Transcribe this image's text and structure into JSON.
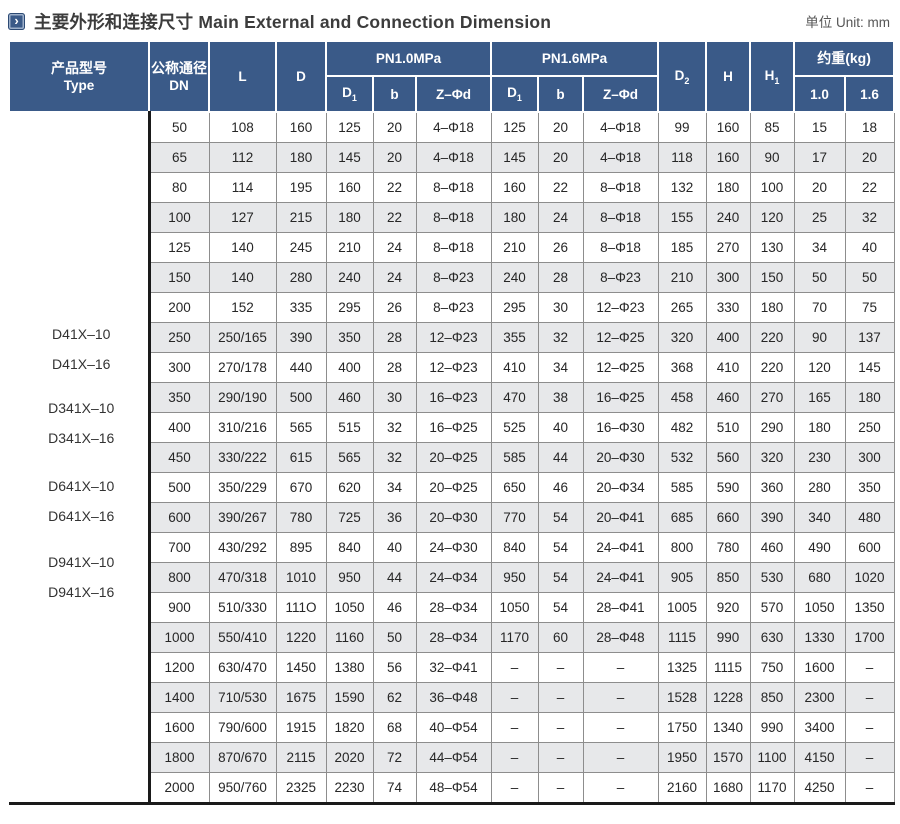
{
  "page": {
    "title_zh": "主要外形和连接尺寸",
    "title_en": "Main External and Connection Dimension",
    "unit_label": "单位 Unit: mm",
    "title_icon": "chevron-right-icon"
  },
  "colors": {
    "header_bg": "#3a5a88",
    "row_alt_bg": "#e7e8ea",
    "heavy_border": "#1a1a1a",
    "cell_border": "#8d8d8d",
    "body_text": "#262626"
  },
  "table": {
    "header": {
      "type": {
        "zh": "产品型号",
        "en": "Type"
      },
      "dn": {
        "zh": "公称通径",
        "en": "DN"
      },
      "l": "L",
      "d": "D",
      "pn10": "PN1.0MPa",
      "pn16": "PN1.6MPa",
      "d1": {
        "base": "D",
        "sub": "1"
      },
      "b": "b",
      "zd": "Z–Φd",
      "d2": {
        "base": "D",
        "sub": "2"
      },
      "h": "H",
      "h1": {
        "base": "H",
        "sub": "1"
      },
      "weight": "约重(kg)",
      "w10": "1.0",
      "w16": "1.6"
    },
    "type_labels": [
      "D41X–10",
      "D41X–16",
      "D341X–10",
      "D341X–16",
      "D641X–10",
      "D641X–16",
      "D941X–10",
      "D941X–16"
    ],
    "rows": [
      [
        "50",
        "108",
        "160",
        "125",
        "20",
        "4–Φ18",
        "125",
        "20",
        "4–Φ18",
        "99",
        "160",
        "85",
        "15",
        "18"
      ],
      [
        "65",
        "112",
        "180",
        "145",
        "20",
        "4–Φ18",
        "145",
        "20",
        "4–Φ18",
        "118",
        "160",
        "90",
        "17",
        "20"
      ],
      [
        "80",
        "114",
        "195",
        "160",
        "22",
        "8–Φ18",
        "160",
        "22",
        "8–Φ18",
        "132",
        "180",
        "100",
        "20",
        "22"
      ],
      [
        "100",
        "127",
        "215",
        "180",
        "22",
        "8–Φ18",
        "180",
        "24",
        "8–Φ18",
        "155",
        "240",
        "120",
        "25",
        "32"
      ],
      [
        "125",
        "140",
        "245",
        "210",
        "24",
        "8–Φ18",
        "210",
        "26",
        "8–Φ18",
        "185",
        "270",
        "130",
        "34",
        "40"
      ],
      [
        "150",
        "140",
        "280",
        "240",
        "24",
        "8–Φ23",
        "240",
        "28",
        "8–Φ23",
        "210",
        "300",
        "150",
        "50",
        "50"
      ],
      [
        "200",
        "152",
        "335",
        "295",
        "26",
        "8–Φ23",
        "295",
        "30",
        "12–Φ23",
        "265",
        "330",
        "180",
        "70",
        "75"
      ],
      [
        "250",
        "250/165",
        "390",
        "350",
        "28",
        "12–Φ23",
        "355",
        "32",
        "12–Φ25",
        "320",
        "400",
        "220",
        "90",
        "137"
      ],
      [
        "300",
        "270/178",
        "440",
        "400",
        "28",
        "12–Φ23",
        "410",
        "34",
        "12–Φ25",
        "368",
        "410",
        "220",
        "120",
        "145"
      ],
      [
        "350",
        "290/190",
        "500",
        "460",
        "30",
        "16–Φ23",
        "470",
        "38",
        "16–Φ25",
        "458",
        "460",
        "270",
        "165",
        "180"
      ],
      [
        "400",
        "310/216",
        "565",
        "515",
        "32",
        "16–Φ25",
        "525",
        "40",
        "16–Φ30",
        "482",
        "510",
        "290",
        "180",
        "250"
      ],
      [
        "450",
        "330/222",
        "615",
        "565",
        "32",
        "20–Φ25",
        "585",
        "44",
        "20–Φ30",
        "532",
        "560",
        "320",
        "230",
        "300"
      ],
      [
        "500",
        "350/229",
        "670",
        "620",
        "34",
        "20–Φ25",
        "650",
        "46",
        "20–Φ34",
        "585",
        "590",
        "360",
        "280",
        "350"
      ],
      [
        "600",
        "390/267",
        "780",
        "725",
        "36",
        "20–Φ30",
        "770",
        "54",
        "20–Φ41",
        "685",
        "660",
        "390",
        "340",
        "480"
      ],
      [
        "700",
        "430/292",
        "895",
        "840",
        "40",
        "24–Φ30",
        "840",
        "54",
        "24–Φ41",
        "800",
        "780",
        "460",
        "490",
        "600"
      ],
      [
        "800",
        "470/318",
        "1010",
        "950",
        "44",
        "24–Φ34",
        "950",
        "54",
        "24–Φ41",
        "905",
        "850",
        "530",
        "680",
        "1020"
      ],
      [
        "900",
        "510/330",
        "111O",
        "1050",
        "46",
        "28–Φ34",
        "1050",
        "54",
        "28–Φ41",
        "1005",
        "920",
        "570",
        "1050",
        "1350"
      ],
      [
        "1000",
        "550/410",
        "1220",
        "1160",
        "50",
        "28–Φ34",
        "1170",
        "60",
        "28–Φ48",
        "1115",
        "990",
        "630",
        "1330",
        "1700"
      ],
      [
        "1200",
        "630/470",
        "1450",
        "1380",
        "56",
        "32–Φ41",
        "–",
        "–",
        "–",
        "1325",
        "1115",
        "750",
        "1600",
        "–"
      ],
      [
        "1400",
        "710/530",
        "1675",
        "1590",
        "62",
        "36–Φ48",
        "–",
        "–",
        "–",
        "1528",
        "1228",
        "850",
        "2300",
        "–"
      ],
      [
        "1600",
        "790/600",
        "1915",
        "1820",
        "68",
        "40–Φ54",
        "–",
        "–",
        "–",
        "1750",
        "1340",
        "990",
        "3400",
        "–"
      ],
      [
        "1800",
        "870/670",
        "2115",
        "2020",
        "72",
        "44–Φ54",
        "–",
        "–",
        "–",
        "1950",
        "1570",
        "1100",
        "4150",
        "–"
      ],
      [
        "2000",
        "950/760",
        "2325",
        "2230",
        "74",
        "48–Φ54",
        "–",
        "–",
        "–",
        "2160",
        "1680",
        "1170",
        "4250",
        "–"
      ]
    ]
  }
}
